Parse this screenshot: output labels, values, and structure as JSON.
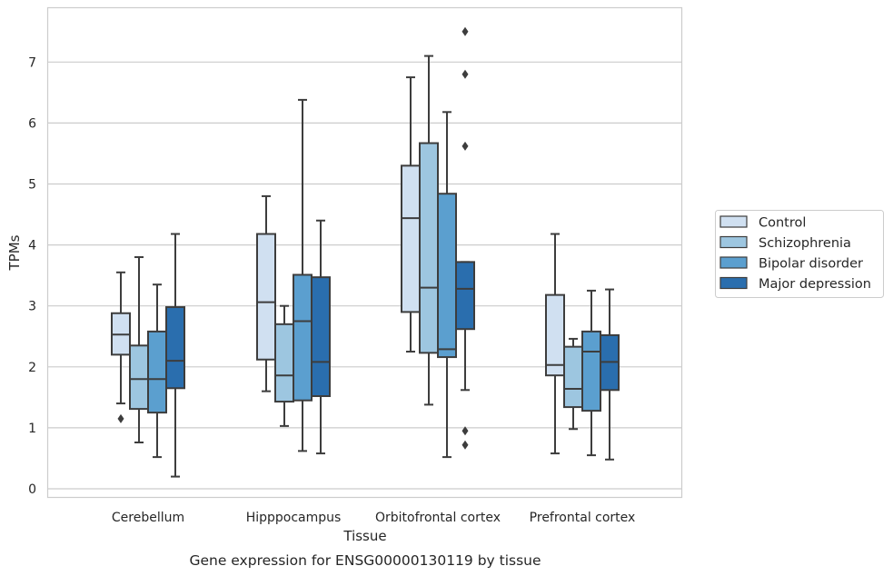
{
  "chart_data": {
    "type": "box",
    "title": "",
    "caption": "Gene expression for ENSG00000130119 by tissue",
    "xlabel": "Tissue",
    "ylabel": "TPMs",
    "ylim": [
      -0.15,
      7.9
    ],
    "yticks": [
      0,
      1,
      2,
      3,
      4,
      5,
      6,
      7
    ],
    "grid": "horizontal",
    "legend_position": "right",
    "categories": [
      "Cerebellum",
      "Hipppocampus",
      "Orbitofrontal cortex",
      "Prefrontal cortex"
    ],
    "series": [
      {
        "name": "Control",
        "color": "#d0e0f1",
        "boxes": [
          {
            "whisker_low": 1.4,
            "q1": 2.2,
            "median": 2.53,
            "q3": 2.88,
            "whisker_high": 3.55,
            "outliers": [
              1.15
            ]
          },
          {
            "whisker_low": 1.6,
            "q1": 2.12,
            "median": 3.06,
            "q3": 4.18,
            "whisker_high": 4.8,
            "outliers": []
          },
          {
            "whisker_low": 2.25,
            "q1": 2.9,
            "median": 4.44,
            "q3": 5.3,
            "whisker_high": 6.75,
            "outliers": []
          },
          {
            "whisker_low": 0.58,
            "q1": 1.86,
            "median": 2.03,
            "q3": 3.18,
            "whisker_high": 4.18,
            "outliers": []
          }
        ]
      },
      {
        "name": "Schizophrenia",
        "color": "#9dc6e0",
        "boxes": [
          {
            "whisker_low": 0.76,
            "q1": 1.31,
            "median": 1.8,
            "q3": 2.35,
            "whisker_high": 3.8,
            "outliers": []
          },
          {
            "whisker_low": 1.03,
            "q1": 1.43,
            "median": 1.86,
            "q3": 2.7,
            "whisker_high": 3.0,
            "outliers": []
          },
          {
            "whisker_low": 1.38,
            "q1": 2.23,
            "median": 3.3,
            "q3": 5.67,
            "whisker_high": 7.1,
            "outliers": []
          },
          {
            "whisker_low": 0.98,
            "q1": 1.34,
            "median": 1.64,
            "q3": 2.33,
            "whisker_high": 2.46,
            "outliers": []
          }
        ]
      },
      {
        "name": "Bipolar disorder",
        "color": "#5b9fcf",
        "boxes": [
          {
            "whisker_low": 0.52,
            "q1": 1.25,
            "median": 1.8,
            "q3": 2.58,
            "whisker_high": 3.35,
            "outliers": []
          },
          {
            "whisker_low": 0.62,
            "q1": 1.45,
            "median": 2.75,
            "q3": 3.51,
            "whisker_high": 6.38,
            "outliers": []
          },
          {
            "whisker_low": 0.52,
            "q1": 2.16,
            "median": 2.29,
            "q3": 4.84,
            "whisker_high": 6.18,
            "outliers": []
          },
          {
            "whisker_low": 0.55,
            "q1": 1.28,
            "median": 2.25,
            "q3": 2.58,
            "whisker_high": 3.25,
            "outliers": []
          }
        ]
      },
      {
        "name": "Major depression",
        "color": "#2a6eae",
        "boxes": [
          {
            "whisker_low": 0.2,
            "q1": 1.65,
            "median": 2.1,
            "q3": 2.98,
            "whisker_high": 4.18,
            "outliers": []
          },
          {
            "whisker_low": 0.58,
            "q1": 1.52,
            "median": 2.08,
            "q3": 3.47,
            "whisker_high": 4.4,
            "outliers": []
          },
          {
            "whisker_low": 1.62,
            "q1": 2.62,
            "median": 3.28,
            "q3": 3.72,
            "whisker_high": 3.72,
            "outliers": [
              7.5,
              6.8,
              5.62,
              0.95,
              0.72
            ]
          },
          {
            "whisker_low": 0.48,
            "q1": 1.62,
            "median": 2.08,
            "q3": 2.52,
            "whisker_high": 3.27,
            "outliers": []
          }
        ]
      }
    ]
  }
}
